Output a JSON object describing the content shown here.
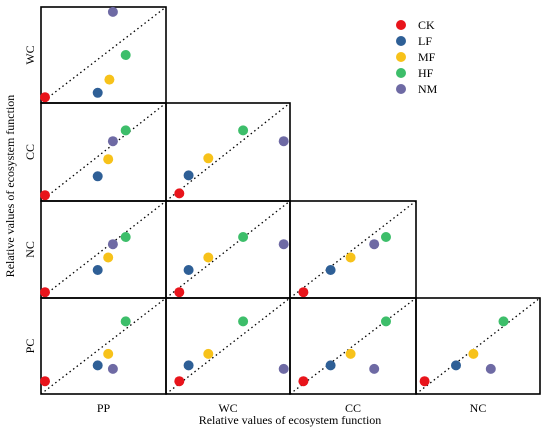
{
  "chart_data": {
    "type": "scatter",
    "layout": "lower-triangular pairwise matrix",
    "xlabel": "Relative values of ecosystem function",
    "ylabel": "Relative values of ecosystem function",
    "column_labels": [
      "PP",
      "WC",
      "CC",
      "NC"
    ],
    "row_labels": [
      "WC",
      "CC",
      "NC",
      "PC"
    ],
    "reference_line": "1:1 dotted diagonal",
    "xlim": [
      0,
      1
    ],
    "ylim": [
      0,
      1
    ],
    "legend": {
      "placement": "top-right",
      "entries": [
        {
          "name": "CK",
          "color": "#e8141b"
        },
        {
          "name": "LF",
          "color": "#2e5f96"
        },
        {
          "name": "MF",
          "color": "#f7c21a"
        },
        {
          "name": "HF",
          "color": "#3dbe6a"
        },
        {
          "name": "NM",
          "color": "#6e6aa4"
        }
      ]
    },
    "panels": [
      {
        "row": "WC",
        "col": "PP",
        "points": {
          "CK": [
            0.0,
            0.02
          ],
          "LF": [
            0.45,
            0.07
          ],
          "MF": [
            0.55,
            0.22
          ],
          "HF": [
            0.69,
            0.5
          ],
          "NM": [
            0.58,
            0.99
          ]
        }
      },
      {
        "row": "CC",
        "col": "PP",
        "points": {
          "CK": [
            0.0,
            0.02
          ],
          "LF": [
            0.45,
            0.23
          ],
          "MF": [
            0.54,
            0.42
          ],
          "HF": [
            0.69,
            0.74
          ],
          "NM": [
            0.58,
            0.62
          ]
        }
      },
      {
        "row": "CC",
        "col": "WC",
        "points": {
          "CK": [
            0.08,
            0.04
          ],
          "LF": [
            0.16,
            0.24
          ],
          "MF": [
            0.33,
            0.43
          ],
          "HF": [
            0.63,
            0.74
          ],
          "NM": [
            0.98,
            0.62
          ]
        }
      },
      {
        "row": "NC",
        "col": "PP",
        "points": {
          "CK": [
            0.0,
            0.02
          ],
          "LF": [
            0.45,
            0.27
          ],
          "MF": [
            0.54,
            0.41
          ],
          "HF": [
            0.69,
            0.64
          ],
          "NM": [
            0.58,
            0.56
          ]
        }
      },
      {
        "row": "NC",
        "col": "WC",
        "points": {
          "CK": [
            0.08,
            0.02
          ],
          "LF": [
            0.16,
            0.27
          ],
          "MF": [
            0.33,
            0.41
          ],
          "HF": [
            0.63,
            0.64
          ],
          "NM": [
            0.98,
            0.56
          ]
        }
      },
      {
        "row": "NC",
        "col": "CC",
        "points": {
          "CK": [
            0.08,
            0.02
          ],
          "LF": [
            0.31,
            0.27
          ],
          "MF": [
            0.48,
            0.41
          ],
          "HF": [
            0.78,
            0.64
          ],
          "NM": [
            0.68,
            0.56
          ]
        }
      },
      {
        "row": "PC",
        "col": "PP",
        "points": {
          "CK": [
            0.0,
            0.1
          ],
          "LF": [
            0.45,
            0.28
          ],
          "MF": [
            0.54,
            0.41
          ],
          "HF": [
            0.69,
            0.78
          ],
          "NM": [
            0.58,
            0.24
          ]
        }
      },
      {
        "row": "PC",
        "col": "WC",
        "points": {
          "CK": [
            0.08,
            0.1
          ],
          "LF": [
            0.16,
            0.28
          ],
          "MF": [
            0.33,
            0.41
          ],
          "HF": [
            0.63,
            0.78
          ],
          "NM": [
            0.98,
            0.24
          ]
        }
      },
      {
        "row": "PC",
        "col": "CC",
        "points": {
          "CK": [
            0.08,
            0.1
          ],
          "LF": [
            0.31,
            0.28
          ],
          "MF": [
            0.48,
            0.41
          ],
          "HF": [
            0.78,
            0.78
          ],
          "NM": [
            0.68,
            0.24
          ]
        }
      },
      {
        "row": "PC",
        "col": "NC",
        "points": {
          "CK": [
            0.04,
            0.1
          ],
          "LF": [
            0.31,
            0.28
          ],
          "MF": [
            0.46,
            0.41
          ],
          "HF": [
            0.72,
            0.78
          ],
          "NM": [
            0.61,
            0.24
          ]
        }
      }
    ]
  }
}
